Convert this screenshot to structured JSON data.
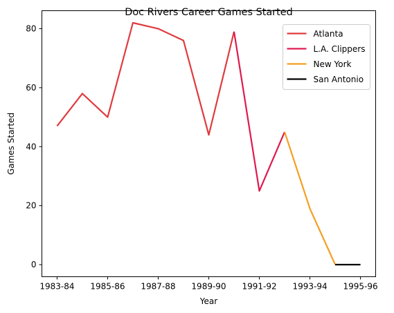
{
  "chart_data": {
    "type": "line",
    "title": "Doc Rivers Career Games Started",
    "xlabel": "Year",
    "ylabel": "Games Started",
    "x_ticks": [
      "1983-84",
      "1985-86",
      "1987-88",
      "1989-90",
      "1991-92",
      "1993-94",
      "1995-96"
    ],
    "y_ticks": [
      0,
      20,
      40,
      60,
      80
    ],
    "ylim": [
      -4.1,
      86.1
    ],
    "grid": false,
    "legend_position": "top-right",
    "seasons": [
      "1983-84",
      "1984-85",
      "1985-86",
      "1986-87",
      "1987-88",
      "1988-89",
      "1989-90",
      "1990-91",
      "1991-92",
      "1992-93",
      "1993-94",
      "1994-95",
      "1995-96"
    ],
    "series": [
      {
        "name": "Atlanta",
        "color": "#E03A3E",
        "x": [
          "1983-84",
          "1984-85",
          "1985-86",
          "1986-87",
          "1987-88",
          "1988-89",
          "1989-90",
          "1990-91"
        ],
        "y": [
          47,
          58,
          50,
          82,
          80,
          76,
          44,
          79
        ]
      },
      {
        "name": "L.A. Clippers",
        "color": "#E0194F",
        "x": [
          "1990-91",
          "1991-92",
          "1992-93"
        ],
        "y": [
          79,
          25,
          45
        ]
      },
      {
        "name": "New York",
        "color": "#F59E22",
        "x": [
          "1992-93",
          "1993-94",
          "1994-95"
        ],
        "y": [
          45,
          19,
          0
        ]
      },
      {
        "name": "San Antonio",
        "color": "#000000",
        "x": [
          "1994-95",
          "1995-96"
        ],
        "y": [
          0,
          0
        ]
      }
    ]
  }
}
